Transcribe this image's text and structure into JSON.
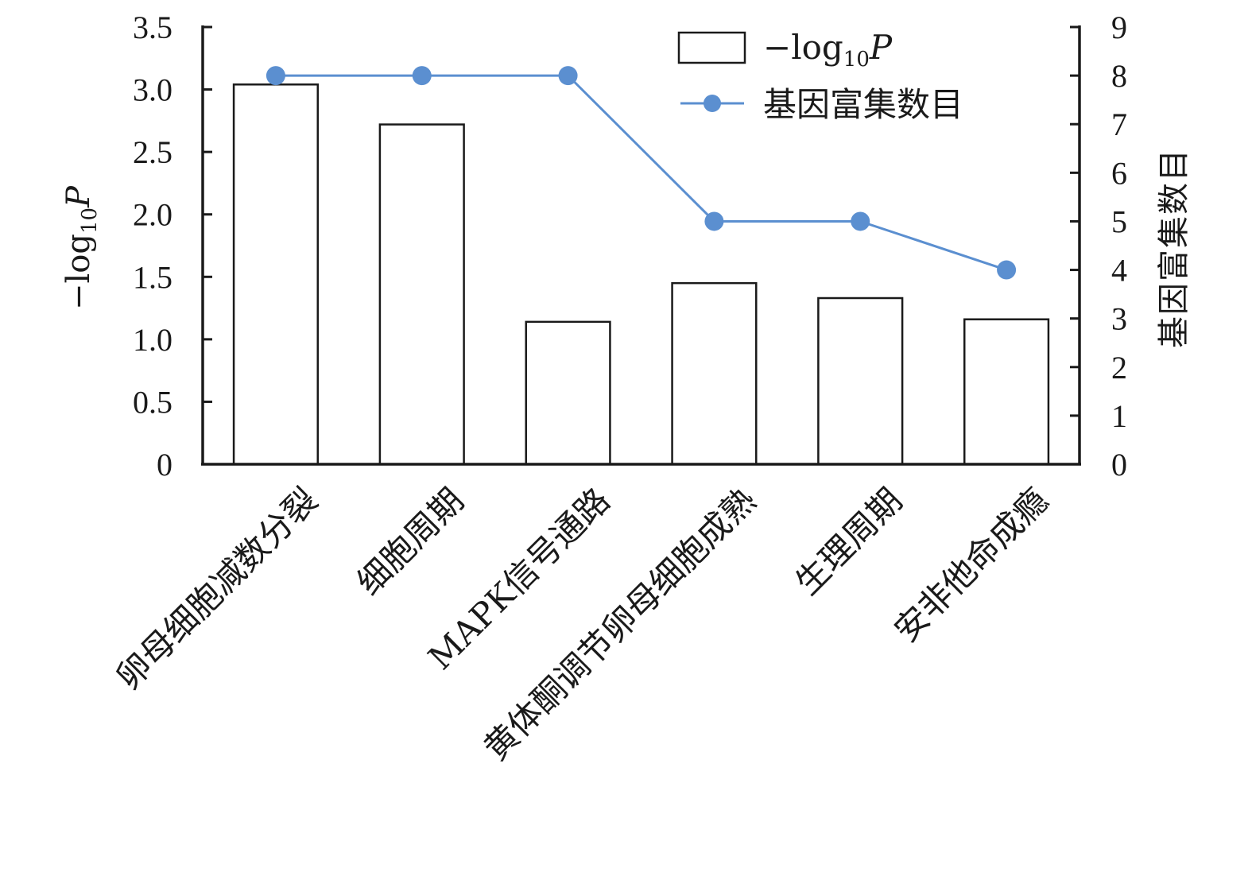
{
  "chart_data": {
    "type": "bar",
    "categories": [
      "卵母细胞减数分裂",
      "细胞周期",
      "MAPK信号通路",
      "黄体酮调节卵母细胞成熟",
      "生理周期",
      "安非他命成瘾"
    ],
    "series": [
      {
        "name": "−log10P",
        "type": "bar",
        "axis": "left",
        "values": [
          3.04,
          2.72,
          1.14,
          1.45,
          1.33,
          1.16
        ]
      },
      {
        "name": "基因富集数目",
        "type": "line",
        "axis": "right",
        "values": [
          8,
          8,
          8,
          5,
          5,
          4
        ]
      }
    ],
    "ylabel_left": {
      "main": "−log",
      "sub": "10",
      "italic": "P"
    },
    "ylabel_right": "基因富集数目",
    "ylim_left": [
      0,
      3.5
    ],
    "ylim_right": [
      0,
      9
    ],
    "yticks_left": [
      "0",
      "0.5",
      "1.0",
      "1.5",
      "2.0",
      "2.5",
      "3.0",
      "3.5"
    ],
    "yticks_right": [
      "0",
      "1",
      "2",
      "3",
      "4",
      "5",
      "6",
      "7",
      "8",
      "9"
    ],
    "legend": {
      "position": "top-right",
      "bar_label": {
        "main": "−log",
        "sub": "10",
        "italic": "P"
      },
      "line_label": "基因富集数目"
    },
    "grid": false,
    "colors": {
      "bar_fill": "#ffffff",
      "bar_stroke": "#1a1a1a",
      "line": "#5b8fd0",
      "axis": "#1a1a1a"
    }
  }
}
